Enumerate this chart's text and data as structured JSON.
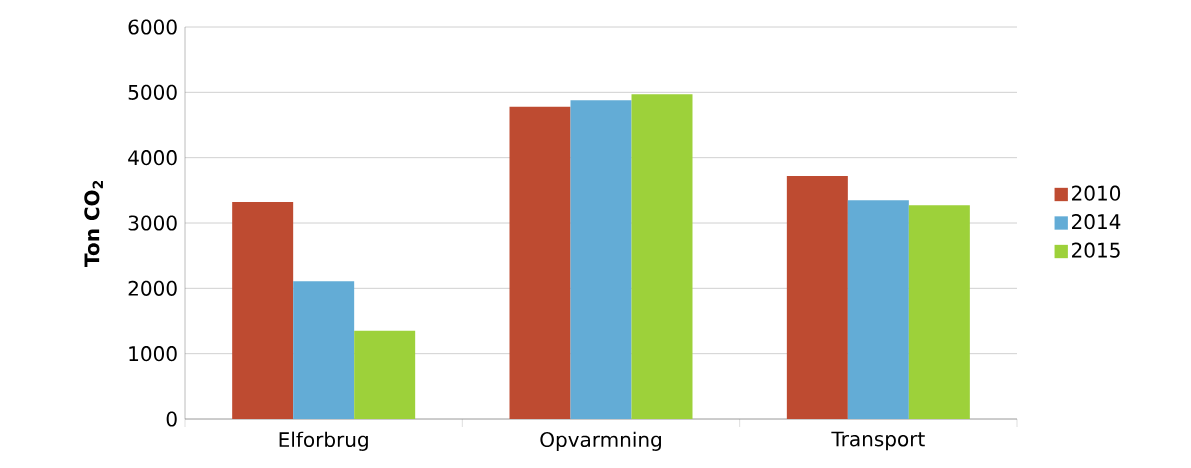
{
  "chart_data": {
    "type": "bar",
    "ylabel": "Ton CO$_{2}$",
    "categories": [
      "Elforbrug",
      "Opvarmning",
      "Transport"
    ],
    "series": [
      {
        "name": "2010",
        "color": "#be4b31",
        "values": [
          3320,
          4780,
          3720
        ]
      },
      {
        "name": "2014",
        "color": "#63acd6",
        "values": [
          2110,
          4880,
          3350
        ]
      },
      {
        "name": "2015",
        "color": "#9dd13a",
        "values": [
          1350,
          4970,
          3270
        ]
      }
    ],
    "ylim": [
      0,
      6000
    ],
    "yticks": [
      0,
      1000,
      2000,
      3000,
      4000,
      5000,
      6000
    ],
    "grid": "y",
    "legend": "right"
  }
}
